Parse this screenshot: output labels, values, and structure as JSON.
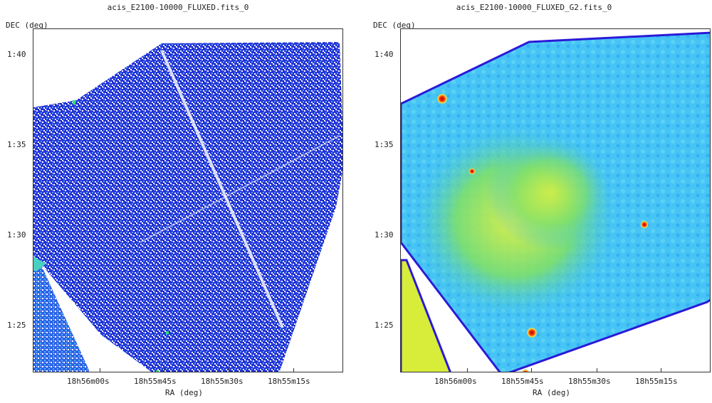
{
  "left": {
    "title": "acis_E2100-10000_FLUXED.fits_0",
    "ylabel": "DEC (deg)",
    "xlabel": "RA (deg)",
    "yticks": [
      "1:40",
      "1:35",
      "1:30",
      "1:25"
    ],
    "xticks": [
      "18h56m00s",
      "18h55m45s",
      "18h55m30s",
      "18h55m15s"
    ]
  },
  "right": {
    "title": "acis_E2100-10000_FLUXED_G2.fits_0",
    "ylabel": "DEC (deg)",
    "xlabel": "RA (deg)",
    "yticks": [
      "1:40",
      "1:35",
      "1:30",
      "1:25"
    ],
    "xticks": [
      "18h56m00s",
      "18h55m45s",
      "18h55m30s",
      "18h55m15s"
    ]
  },
  "colors": {
    "noise_dark": "#1a2fd6",
    "noise_mid": "#3a6cf0",
    "noise_light": "#5aa8f5",
    "smooth_base": "#3ec0f8",
    "smooth_green": "#6fe06a",
    "smooth_yellow": "#dff23a",
    "edge": "#2a1ad8",
    "source": "#ff3b10"
  }
}
